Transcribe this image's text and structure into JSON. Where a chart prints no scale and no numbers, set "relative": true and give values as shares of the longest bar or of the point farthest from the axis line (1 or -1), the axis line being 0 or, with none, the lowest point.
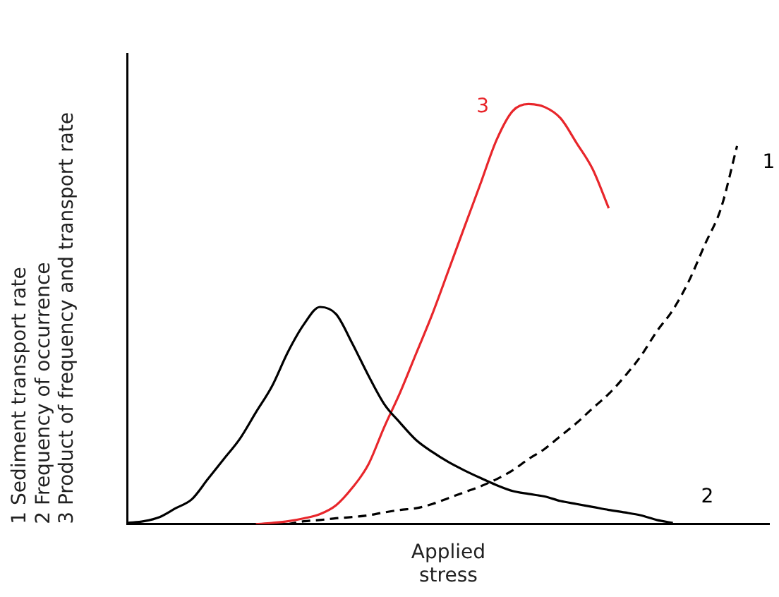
{
  "chart_data": {
    "type": "line",
    "relative": true,
    "xlabel": "Applied\nstress",
    "ylabel": "1 Sediment transport rate\n2 Frequency of occurrence\n3 Product of frequency and transport rate",
    "categories": [
      null,
      null,
      null,
      null,
      null,
      null,
      null,
      null,
      null,
      null,
      null,
      null,
      null,
      null,
      null,
      null,
      null,
      null,
      null,
      null,
      null,
      null,
      null,
      null,
      null,
      null,
      null,
      null,
      null,
      null,
      null,
      null,
      null,
      null,
      null,
      null,
      null,
      null,
      null,
      null,
      null
    ],
    "marker": "none",
    "grid": false,
    "series": [
      {
        "name": "1",
        "color": "#000000",
        "line_style": "dashed",
        "values": [
          null,
          null,
          null,
          null,
          null,
          null,
          null,
          null,
          null,
          null,
          0,
          0.007,
          0.01,
          0.014,
          0.017,
          0.021,
          0.028,
          0.034,
          0.038,
          0.048,
          0.062,
          0.076,
          0.09,
          0.107,
          0.128,
          0.155,
          0.179,
          0.21,
          0.241,
          0.276,
          0.31,
          0.352,
          0.4,
          0.459,
          0.51,
          0.579,
          0.666,
          0.752,
          0.9,
          null,
          null
        ]
      },
      {
        "name": "2",
        "color": "#000000",
        "line_style": "solid",
        "values": [
          0.003,
          0.007,
          0.017,
          0.038,
          0.059,
          0.107,
          0.155,
          0.203,
          0.266,
          0.328,
          0.41,
          0.476,
          0.517,
          0.5,
          0.431,
          0.355,
          0.286,
          0.241,
          0.2,
          0.172,
          0.148,
          0.128,
          0.11,
          0.093,
          0.079,
          0.072,
          0.066,
          0.055,
          0.048,
          0.041,
          0.034,
          0.028,
          0.021,
          0.01,
          0.003,
          null,
          null,
          null,
          null,
          null,
          null
        ]
      },
      {
        "name": "3",
        "color": "#e8262b",
        "line_style": "solid",
        "values": [
          null,
          null,
          null,
          null,
          null,
          null,
          null,
          null,
          0,
          0.003,
          0.007,
          0.014,
          0.024,
          0.045,
          0.086,
          0.141,
          0.231,
          0.314,
          0.407,
          0.5,
          0.603,
          0.707,
          0.81,
          0.914,
          0.983,
          1,
          0.993,
          0.966,
          0.907,
          0.845,
          0.752,
          null,
          null,
          null,
          null,
          null,
          null,
          null,
          null,
          null,
          null
        ]
      }
    ]
  }
}
